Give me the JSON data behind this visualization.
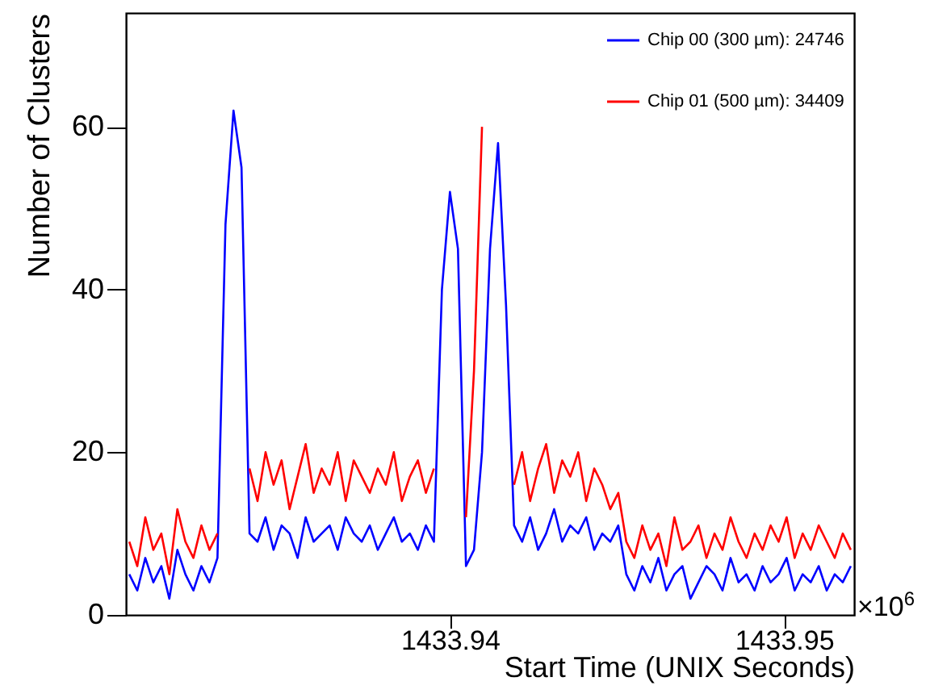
{
  "chart_data": {
    "type": "line",
    "xlabel": "Start Time (UNIX Seconds)",
    "ylabel": "Number of Clusters",
    "annotations": [
      "×10$^{6}$"
    ],
    "x": [
      1433.9304,
      1433.93064,
      1433.93088,
      1433.93112,
      1433.93136,
      1433.9316,
      1433.93184,
      1433.93208,
      1433.93232,
      1433.93256,
      1433.9328,
      1433.93304,
      1433.93328,
      1433.93352,
      1433.93376,
      1433.934,
      1433.93424,
      1433.93448,
      1433.93472,
      1433.93496,
      1433.9352,
      1433.93544,
      1433.93568,
      1433.93592,
      1433.93616,
      1433.9364,
      1433.93664,
      1433.93688,
      1433.93712,
      1433.93736,
      1433.9376,
      1433.93784,
      1433.93808,
      1433.93832,
      1433.93856,
      1433.9388,
      1433.93904,
      1433.93928,
      1433.93952,
      1433.93976,
      1433.94,
      1433.94024,
      1433.94048,
      1433.94072,
      1433.94096,
      1433.9412,
      1433.94144,
      1433.94168,
      1433.94192,
      1433.94216,
      1433.9424,
      1433.94264,
      1433.94288,
      1433.94312,
      1433.94336,
      1433.9436,
      1433.94384,
      1433.94408,
      1433.94432,
      1433.94456,
      1433.9448,
      1433.94504,
      1433.94528,
      1433.94552,
      1433.94576,
      1433.946,
      1433.94624,
      1433.94648,
      1433.94672,
      1433.94696,
      1433.9472,
      1433.94744,
      1433.94768,
      1433.94792,
      1433.94816,
      1433.9484,
      1433.94864,
      1433.94888,
      1433.94912,
      1433.94936,
      1433.9496,
      1433.94984,
      1433.95008,
      1433.95032,
      1433.95056,
      1433.9508,
      1433.95104,
      1433.95128,
      1433.95152,
      1433.95176,
      1433.952
    ],
    "series": [
      {
        "name": "Chip 00 (300 µm): 24746",
        "color": "#0000ff",
        "values": [
          5,
          3,
          7,
          4,
          6,
          2,
          8,
          5,
          3,
          6,
          4,
          7,
          48,
          62,
          55,
          10,
          9,
          12,
          8,
          11,
          10,
          7,
          12,
          9,
          10,
          11,
          8,
          12,
          10,
          9,
          11,
          8,
          10,
          12,
          9,
          10,
          8,
          11,
          9,
          40,
          52,
          45,
          6,
          8,
          20,
          45,
          58,
          38,
          11,
          9,
          12,
          8,
          10,
          13,
          9,
          11,
          10,
          12,
          8,
          10,
          9,
          11,
          5,
          3,
          6,
          4,
          7,
          3,
          5,
          6,
          2,
          4,
          6,
          5,
          3,
          7,
          4,
          5,
          3,
          6,
          4,
          5,
          7,
          3,
          5,
          4,
          6,
          3,
          5,
          4,
          6
        ]
      },
      {
        "name": "Chip 01 (500 µm): 34409",
        "color": "#ff0000",
        "values": [
          9,
          6,
          12,
          8,
          10,
          5,
          13,
          9,
          7,
          11,
          8,
          10,
          null,
          null,
          null,
          18,
          14,
          20,
          16,
          19,
          13,
          17,
          21,
          15,
          18,
          16,
          20,
          14,
          19,
          17,
          15,
          18,
          16,
          20,
          14,
          17,
          19,
          15,
          18,
          null,
          null,
          null,
          12,
          30,
          60,
          null,
          null,
          null,
          16,
          20,
          14,
          18,
          21,
          15,
          19,
          17,
          20,
          14,
          18,
          16,
          13,
          15,
          9,
          7,
          11,
          8,
          10,
          6,
          12,
          8,
          9,
          11,
          7,
          10,
          8,
          12,
          9,
          7,
          10,
          8,
          11,
          9,
          12,
          7,
          10,
          8,
          11,
          9,
          7,
          10,
          8
        ]
      }
    ],
    "xlim": [
      1433.9303,
      1433.9521
    ],
    "xticks": [
      1433.94,
      1433.95
    ],
    "ylim": [
      0,
      74
    ],
    "yticks": [
      0,
      20,
      40,
      60
    ],
    "legend": "top right",
    "line_style": "solid"
  }
}
